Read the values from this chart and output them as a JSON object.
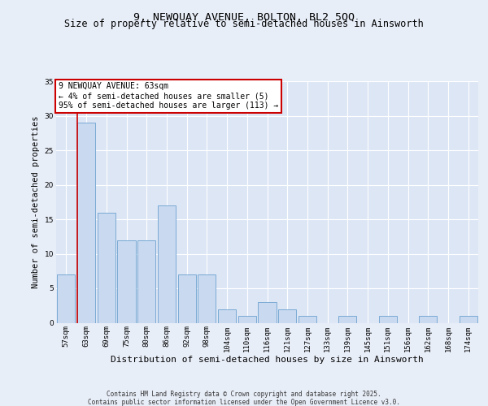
{
  "title_line1": "9, NEWQUAY AVENUE, BOLTON, BL2 5QQ",
  "title_line2": "Size of property relative to semi-detached houses in Ainsworth",
  "xlabel": "Distribution of semi-detached houses by size in Ainsworth",
  "ylabel": "Number of semi-detached properties",
  "categories": [
    "57sqm",
    "63sqm",
    "69sqm",
    "75sqm",
    "80sqm",
    "86sqm",
    "92sqm",
    "98sqm",
    "104sqm",
    "110sqm",
    "116sqm",
    "121sqm",
    "127sqm",
    "133sqm",
    "139sqm",
    "145sqm",
    "151sqm",
    "156sqm",
    "162sqm",
    "168sqm",
    "174sqm"
  ],
  "values": [
    7,
    29,
    16,
    12,
    12,
    17,
    7,
    7,
    2,
    1,
    3,
    2,
    1,
    0,
    1,
    0,
    1,
    0,
    1,
    0,
    1
  ],
  "bar_color": "#c9d9f0",
  "bar_edge_color": "#7aaad4",
  "highlight_index": 1,
  "highlight_line_color": "#cc0000",
  "ylim": [
    0,
    35
  ],
  "yticks": [
    0,
    5,
    10,
    15,
    20,
    25,
    30,
    35
  ],
  "annotation_title": "9 NEWQUAY AVENUE: 63sqm",
  "annotation_line1": "← 4% of semi-detached houses are smaller (5)",
  "annotation_line2": "95% of semi-detached houses are larger (113) →",
  "annotation_box_color": "#ffffff",
  "annotation_box_edge_color": "#cc0000",
  "bg_color": "#e8eef8",
  "plot_bg_color": "#dde6f5",
  "footer_line1": "Contains HM Land Registry data © Crown copyright and database right 2025.",
  "footer_line2": "Contains public sector information licensed under the Open Government Licence v3.0.",
  "title_fontsize": 9.5,
  "subtitle_fontsize": 8.5,
  "tick_fontsize": 6.5,
  "xlabel_fontsize": 8,
  "ylabel_fontsize": 7.5,
  "annotation_fontsize": 7,
  "footer_fontsize": 5.5
}
